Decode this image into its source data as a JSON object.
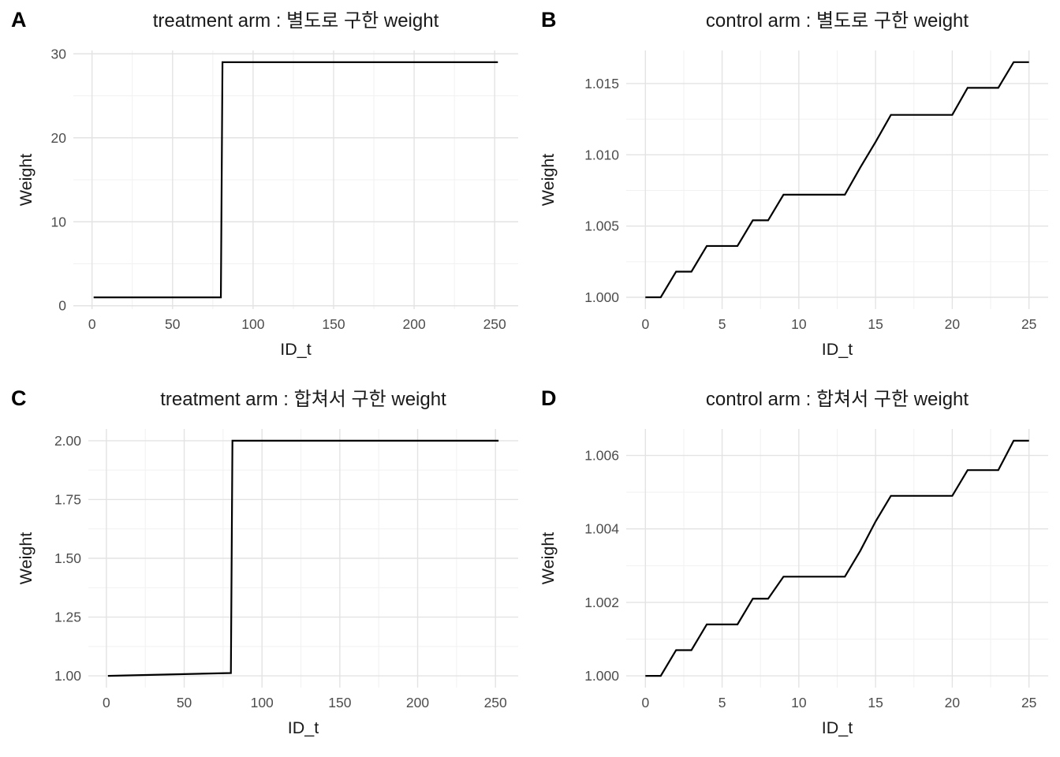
{
  "figure": {
    "background_color": "#ffffff",
    "line_color": "#000000",
    "grid_major_color": "#e3e3e3",
    "grid_minor_color": "#f1f1f1",
    "tick_label_color": "#4d4d4d",
    "axis_title_color": "#1a1a1a",
    "title_color": "#1a1a1a"
  },
  "chart_data": [
    {
      "panel": "A",
      "type": "line",
      "title": "treatment arm : 별도로 구한 weight",
      "xlabel": "ID_t",
      "ylabel": "Weight",
      "xlim": [
        -11.6,
        264.6
      ],
      "ylim": [
        -0.4,
        30.4
      ],
      "xticks": {
        "values": [
          0,
          50,
          100,
          150,
          200,
          250
        ],
        "labels": [
          "0",
          "50",
          "100",
          "150",
          "200",
          "250"
        ]
      },
      "yticks": {
        "values": [
          0,
          10,
          20,
          30
        ],
        "labels": [
          "0",
          "10",
          "20",
          "30"
        ]
      },
      "x_minor": [
        25,
        75,
        125,
        175,
        225
      ],
      "y_minor": [
        5,
        15,
        25
      ],
      "grid": true,
      "legend": "none",
      "points": [
        [
          1,
          1
        ],
        [
          80,
          1
        ],
        [
          81,
          29
        ],
        [
          252,
          29
        ]
      ]
    },
    {
      "panel": "B",
      "type": "line",
      "title": "control arm : 별도로 구한 weight",
      "xlabel": "ID_t",
      "ylabel": "Weight",
      "xlim": [
        -1.25,
        26.25
      ],
      "ylim": [
        0.99917,
        1.01732
      ],
      "xticks": {
        "values": [
          0,
          5,
          10,
          15,
          20,
          25
        ],
        "labels": [
          "0",
          "5",
          "10",
          "15",
          "20",
          "25"
        ]
      },
      "yticks": {
        "values": [
          1.0,
          1.005,
          1.01,
          1.015
        ],
        "labels": [
          "1.000",
          "1.005",
          "1.010",
          "1.015"
        ]
      },
      "x_minor": [
        2.5,
        7.5,
        12.5,
        17.5,
        22.5
      ],
      "y_minor": [
        1.0025,
        1.0075,
        1.0125
      ],
      "grid": true,
      "legend": "none",
      "points": [
        [
          0,
          1.0
        ],
        [
          1,
          1.0
        ],
        [
          2,
          1.0018
        ],
        [
          3,
          1.0018
        ],
        [
          4,
          1.0036
        ],
        [
          5,
          1.0036
        ],
        [
          6,
          1.0036
        ],
        [
          7,
          1.0054
        ],
        [
          8,
          1.0054
        ],
        [
          9,
          1.0072
        ],
        [
          10,
          1.0072
        ],
        [
          11,
          1.0072
        ],
        [
          12,
          1.0072
        ],
        [
          13,
          1.0072
        ],
        [
          14,
          1.0091
        ],
        [
          15,
          1.0109
        ],
        [
          16,
          1.0128
        ],
        [
          17,
          1.0128
        ],
        [
          18,
          1.0128
        ],
        [
          19,
          1.0128
        ],
        [
          20,
          1.0128
        ],
        [
          21,
          1.0147
        ],
        [
          22,
          1.0147
        ],
        [
          23,
          1.0147
        ],
        [
          24,
          1.0165
        ],
        [
          25,
          1.0165
        ]
      ]
    },
    {
      "panel": "C",
      "type": "line",
      "title": "treatment arm : 합쳐서 구한 weight",
      "xlabel": "ID_t",
      "ylabel": "Weight",
      "xlim": [
        -11.6,
        264.6
      ],
      "ylim": [
        0.95,
        2.05
      ],
      "xticks": {
        "values": [
          0,
          50,
          100,
          150,
          200,
          250
        ],
        "labels": [
          "0",
          "50",
          "100",
          "150",
          "200",
          "250"
        ]
      },
      "yticks": {
        "values": [
          1.0,
          1.25,
          1.5,
          1.75,
          2.0
        ],
        "labels": [
          "1.00",
          "1.25",
          "1.50",
          "1.75",
          "2.00"
        ]
      },
      "x_minor": [
        25,
        75,
        125,
        175,
        225
      ],
      "y_minor": [
        1.125,
        1.375,
        1.625,
        1.875
      ],
      "grid": true,
      "legend": "none",
      "points": [
        [
          1,
          1.0
        ],
        [
          80,
          1.012
        ],
        [
          81,
          2.0
        ],
        [
          252,
          2.0
        ]
      ]
    },
    {
      "panel": "D",
      "type": "line",
      "title": "control arm : 합쳐서 구한 weight",
      "xlabel": "ID_t",
      "ylabel": "Weight",
      "xlim": [
        -1.25,
        26.25
      ],
      "ylim": [
        0.99968,
        1.00672
      ],
      "xticks": {
        "values": [
          0,
          5,
          10,
          15,
          20,
          25
        ],
        "labels": [
          "0",
          "5",
          "10",
          "15",
          "20",
          "25"
        ]
      },
      "yticks": {
        "values": [
          1.0,
          1.002,
          1.004,
          1.006
        ],
        "labels": [
          "1.000",
          "1.002",
          "1.004",
          "1.006"
        ]
      },
      "x_minor": [
        2.5,
        7.5,
        12.5,
        17.5,
        22.5
      ],
      "y_minor": [
        1.001,
        1.003,
        1.005
      ],
      "grid": true,
      "legend": "none",
      "points": [
        [
          0,
          1.0
        ],
        [
          1,
          1.0
        ],
        [
          2,
          1.0007
        ],
        [
          3,
          1.0007
        ],
        [
          4,
          1.0014
        ],
        [
          5,
          1.0014
        ],
        [
          6,
          1.0014
        ],
        [
          7,
          1.0021
        ],
        [
          8,
          1.0021
        ],
        [
          9,
          1.0027
        ],
        [
          10,
          1.0027
        ],
        [
          11,
          1.0027
        ],
        [
          12,
          1.0027
        ],
        [
          13,
          1.0027
        ],
        [
          14,
          1.0034
        ],
        [
          15,
          1.0042
        ],
        [
          16,
          1.0049
        ],
        [
          17,
          1.0049
        ],
        [
          18,
          1.0049
        ],
        [
          19,
          1.0049
        ],
        [
          20,
          1.0049
        ],
        [
          21,
          1.0056
        ],
        [
          22,
          1.0056
        ],
        [
          23,
          1.0056
        ],
        [
          24,
          1.0064
        ],
        [
          25,
          1.0064
        ]
      ]
    }
  ]
}
